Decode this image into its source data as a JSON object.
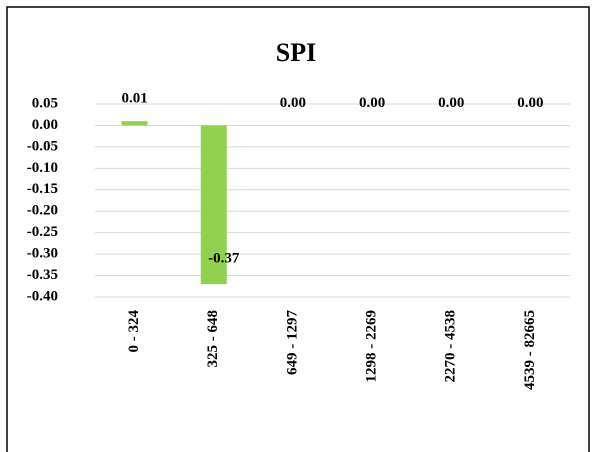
{
  "chart_data": {
    "type": "bar",
    "title": "SPI",
    "categories": [
      "0 - 324",
      "325 - 648",
      "649 - 1297",
      "1298 - 2269",
      "2270 - 4538",
      "4539 - 82665"
    ],
    "values": [
      0.01,
      -0.37,
      0,
      0,
      0,
      0
    ],
    "value_labels": [
      "0.01",
      "-0.37",
      "0.00",
      "0.00",
      "0.00",
      "0.00"
    ],
    "color": "#92d050",
    "ylim": [
      -0.4,
      0.05
    ],
    "yticks": [
      0.05,
      {
        "value": 0,
        "label": "0.00"
      },
      -0.05,
      {
        "value": -0.1,
        "label": "-0.10"
      },
      -0.15,
      {
        "value": -0.2,
        "label": "-0.20"
      },
      -0.25,
      {
        "value": -0.3,
        "label": "-0.30"
      },
      -0.35,
      {
        "value": -0.4,
        "label": "-0.40"
      }
    ],
    "grid": true
  }
}
